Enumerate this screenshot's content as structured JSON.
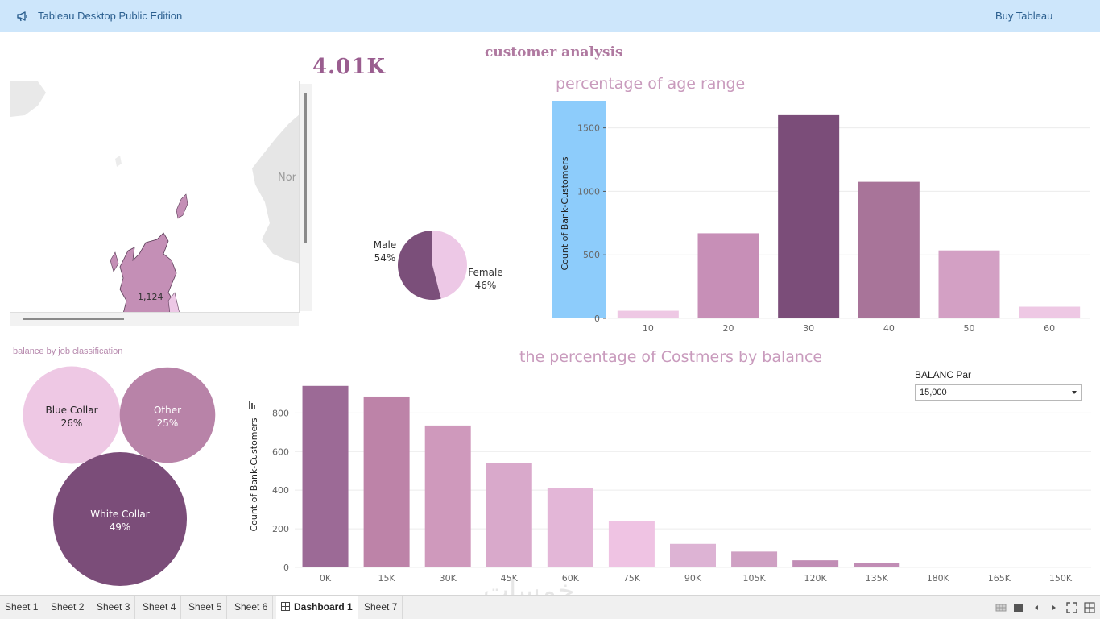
{
  "app": {
    "title": "Tableau Desktop Public Edition",
    "buy_label": "Buy Tableau"
  },
  "dashboard": {
    "title": "customer analysis",
    "kpi": "4.01K"
  },
  "map": {
    "country_label": "Nor",
    "value_label": "1,124"
  },
  "gender_pie": {
    "chart_data": {
      "type": "pie",
      "slices": [
        {
          "name": "Male",
          "percent_label": "54%",
          "value": 54,
          "color": "#7b4f7a"
        },
        {
          "name": "Female",
          "percent_label": "46%",
          "value": 46,
          "color": "#edc8e6"
        }
      ]
    }
  },
  "age_chart": {
    "title": "percentage of age range",
    "chart_data": {
      "type": "bar",
      "title": "percentage of age range",
      "ylabel": "Count of Bank-Customers",
      "categories": [
        "10",
        "20",
        "30",
        "40",
        "50",
        "60"
      ],
      "values": [
        60,
        670,
        1600,
        1075,
        535,
        92
      ],
      "ylim": [
        0,
        1650
      ],
      "yticks": [
        0,
        500,
        1000,
        1500
      ],
      "colors": [
        "#eec8e4",
        "#c78fb7",
        "#7b4d79",
        "#a87499",
        "#d3a0c4",
        "#eec8e4"
      ]
    }
  },
  "job_bubbles": {
    "title": "balance by job classification",
    "chart_data": {
      "type": "bubble",
      "items": [
        {
          "name": "Blue Collar",
          "percent_label": "26%",
          "value": 26,
          "color": "#eec8e4",
          "text_color": "#222222"
        },
        {
          "name": "Other",
          "percent_label": "25%",
          "value": 25,
          "color": "#b883a8",
          "text_color": "#ffffff"
        },
        {
          "name": "White Collar",
          "percent_label": "49%",
          "value": 49,
          "color": "#7b4d79",
          "text_color": "#ffffff"
        }
      ]
    }
  },
  "balance_chart": {
    "title": "the percentage of Costmers by balance",
    "chart_data": {
      "type": "bar",
      "title": "the percentage of Costmers by balance",
      "ylabel": "Count of Bank-Customers",
      "categories": [
        "0K",
        "15K",
        "30K",
        "45K",
        "60K",
        "75K",
        "90K",
        "105K",
        "120K",
        "135K",
        "180K",
        "165K",
        "150K"
      ],
      "values": [
        940,
        885,
        735,
        540,
        410,
        238,
        122,
        82,
        37,
        25,
        0,
        0,
        0
      ],
      "ylim": [
        0,
        960
      ],
      "yticks": [
        0,
        200,
        400,
        600,
        800
      ],
      "colors": [
        "#9c6a96",
        "#bd83a8",
        "#cf99bc",
        "#d9a9cb",
        "#e3b6d7",
        "#efc3e3",
        "#ddb3d4",
        "#cfa0c3",
        "#c18db5",
        "#c18db5",
        "#c18db5",
        "#c18db5",
        "#c18db5"
      ]
    }
  },
  "parameter": {
    "label": "BALANC Par",
    "value": "15,000"
  },
  "tabs": [
    {
      "label": "Sheet 1",
      "active": false
    },
    {
      "label": "Sheet 2",
      "active": false
    },
    {
      "label": "Sheet 3",
      "active": false
    },
    {
      "label": "Sheet 4",
      "active": false
    },
    {
      "label": "Sheet 5",
      "active": false
    },
    {
      "label": "Sheet 6",
      "active": false
    },
    {
      "label": "Dashboard 1",
      "active": true
    },
    {
      "label": "Sheet 7",
      "active": false
    }
  ],
  "watermark": "خمسات",
  "icons": {
    "announce": "megaphone-icon",
    "dropdown": "chevron-down-icon",
    "dashboard_tab": "dashboard-grid-icon",
    "controls": [
      "grid-view-icon",
      "filmstrip-icon",
      "prev-icon",
      "next-icon",
      "fullscreen-icon",
      "split-grid-icon"
    ]
  }
}
